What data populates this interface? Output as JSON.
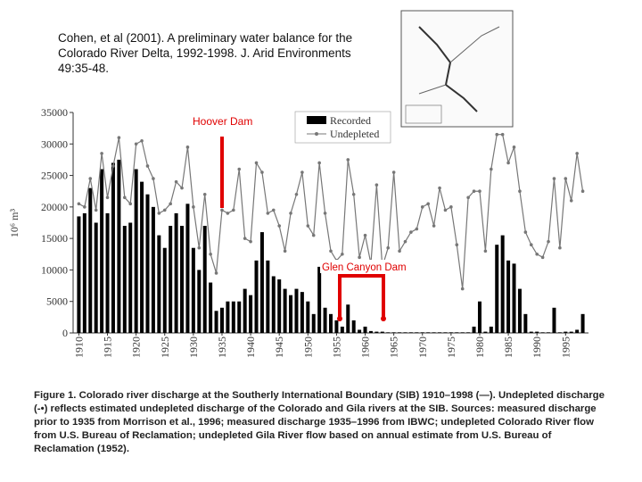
{
  "header": {
    "citation": "Cohen, et al (2001). A preliminary water balance for the Colorado River Delta, 1992-1998. J. Arid Environments 49:35-48."
  },
  "chart_data": {
    "type": "bar",
    "ylabel": "10⁶ m³",
    "x": [
      1910,
      1911,
      1912,
      1913,
      1914,
      1915,
      1916,
      1917,
      1918,
      1919,
      1920,
      1921,
      1922,
      1923,
      1924,
      1925,
      1926,
      1927,
      1928,
      1929,
      1930,
      1931,
      1932,
      1933,
      1934,
      1935,
      1936,
      1937,
      1938,
      1939,
      1940,
      1941,
      1942,
      1943,
      1944,
      1945,
      1946,
      1947,
      1948,
      1949,
      1950,
      1951,
      1952,
      1953,
      1954,
      1955,
      1956,
      1957,
      1958,
      1959,
      1960,
      1961,
      1962,
      1963,
      1964,
      1965,
      1966,
      1967,
      1968,
      1969,
      1970,
      1971,
      1972,
      1973,
      1974,
      1975,
      1976,
      1977,
      1978,
      1979,
      1980,
      1981,
      1982,
      1983,
      1984,
      1985,
      1986,
      1987,
      1988,
      1989,
      1990,
      1991,
      1992,
      1993,
      1994,
      1995,
      1996,
      1997,
      1998
    ],
    "series": [
      {
        "name": "Recorded",
        "type": "bar",
        "color": "#000000",
        "values": [
          18500,
          19000,
          23000,
          17500,
          26000,
          19000,
          27000,
          27500,
          17000,
          17500,
          26000,
          24000,
          22000,
          20000,
          15500,
          13500,
          17000,
          19000,
          17000,
          20500,
          13500,
          10000,
          17000,
          8000,
          3500,
          4000,
          5000,
          5000,
          5000,
          7000,
          6000,
          11500,
          16000,
          11500,
          9000,
          8500,
          7000,
          6000,
          7000,
          6500,
          5000,
          3000,
          10500,
          4000,
          3000,
          2000,
          1000,
          4500,
          2000,
          500,
          1000,
          300,
          200,
          200,
          100,
          100,
          100,
          100,
          100,
          100,
          100,
          100,
          100,
          100,
          100,
          100,
          100,
          100,
          100,
          1000,
          5000,
          200,
          1000,
          14000,
          15500,
          11500,
          11000,
          7000,
          3000,
          200,
          200,
          100,
          100,
          4000,
          100,
          200,
          200,
          500,
          3000
        ]
      },
      {
        "name": "Undepleted",
        "type": "line",
        "color": "#777777",
        "values": [
          20500,
          20000,
          24500,
          19500,
          28500,
          21500,
          26500,
          31000,
          21500,
          20500,
          30000,
          30500,
          26500,
          24500,
          19000,
          19500,
          20500,
          24000,
          23000,
          29500,
          20000,
          13500,
          22000,
          12500,
          9500,
          19500,
          19000,
          19500,
          26000,
          15000,
          14500,
          27000,
          25500,
          19000,
          19500,
          17000,
          13000,
          19000,
          22000,
          25500,
          17000,
          15500,
          27000,
          19000,
          13000,
          11500,
          12500,
          27500,
          22000,
          12000,
          15500,
          11000,
          23500,
          10500,
          13500,
          25500,
          13000,
          14500,
          16000,
          16500,
          20000,
          20500,
          17000,
          23000,
          19500,
          20000,
          14000,
          7000,
          21500,
          22500,
          22500,
          13000,
          26000,
          31500,
          31500,
          27000,
          29500,
          22500,
          16000,
          14000,
          12500,
          12000,
          14500,
          24500,
          13500,
          24500,
          21000,
          28500,
          22500
        ]
      }
    ],
    "xlim": [
      1909,
      1999
    ],
    "xticks": [
      1910,
      1915,
      1920,
      1925,
      1930,
      1935,
      1940,
      1945,
      1950,
      1955,
      1960,
      1965,
      1970,
      1975,
      1980,
      1985,
      1990,
      1995
    ],
    "ylim": [
      0,
      35000
    ],
    "yticks": [
      0,
      5000,
      10000,
      15000,
      20000,
      25000,
      30000,
      35000
    ],
    "annotations": [
      "Hoover Dam",
      "Glen Canyon Dam"
    ]
  },
  "caption": {
    "label": "Figure 1.",
    "text": "Colorado river discharge at the Southerly International Boundary (SIB) 1910–1998 (—). Undepleted discharge (-•) reflects estimated undepleted discharge of the Colorado and Gila rivers at the SIB. Sources: measured discharge prior to 1935 from Morrison et al., 1996; measured discharge 1935–1996 from IBWC; undepleted Colorado River flow from U.S. Bureau of Reclamation; undepleted Gila River flow based on annual estimate from U.S. Bureau of Reclamation (1952)."
  }
}
